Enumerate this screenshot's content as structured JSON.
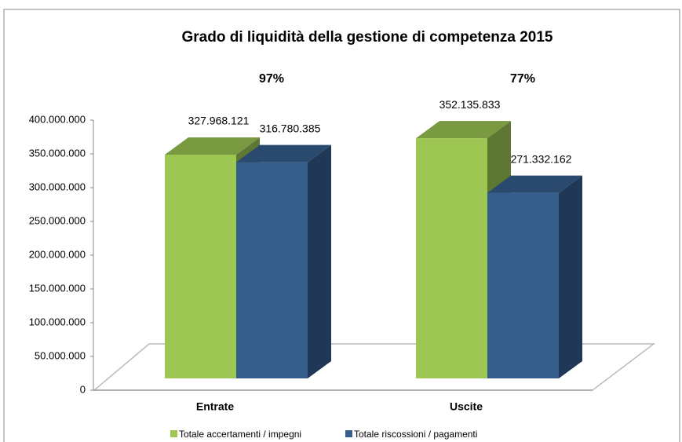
{
  "chart_data": {
    "type": "bar3d",
    "title": "Grado di liquidità della gestione di competenza  2015",
    "categories": [
      "Entrate",
      "Uscite"
    ],
    "annotations": [
      "97%",
      "77%"
    ],
    "series": [
      {
        "name": "Totale accertamenti / impegni",
        "color": "#9dc653",
        "values": [
          327968121,
          352135833
        ],
        "value_labels": [
          "327.968.121",
          "352.135.833"
        ]
      },
      {
        "name": "Totale riscossioni / pagamenti",
        "color": "#355e8d",
        "values": [
          316780385,
          271332162
        ],
        "value_labels": [
          "316.780.385",
          "271.332.162"
        ]
      }
    ],
    "ylim": [
      0,
      400000000
    ],
    "yticks": [
      0,
      {
        "value": 50000000,
        "label": "50.000.000"
      },
      {
        "value": 100000000,
        "label": "100.000.000"
      },
      {
        "value": 150000000,
        "label": "150.000.000"
      },
      {
        "value": 200000000,
        "label": "200.000.000"
      },
      {
        "value": 250000000,
        "label": "250.000.000"
      },
      {
        "value": 300000000,
        "label": "300.000.000"
      },
      {
        "value": 350000000,
        "label": "350.000.000"
      },
      {
        "value": 400000000,
        "label": "400.000.000"
      }
    ],
    "legend": "bottom"
  }
}
